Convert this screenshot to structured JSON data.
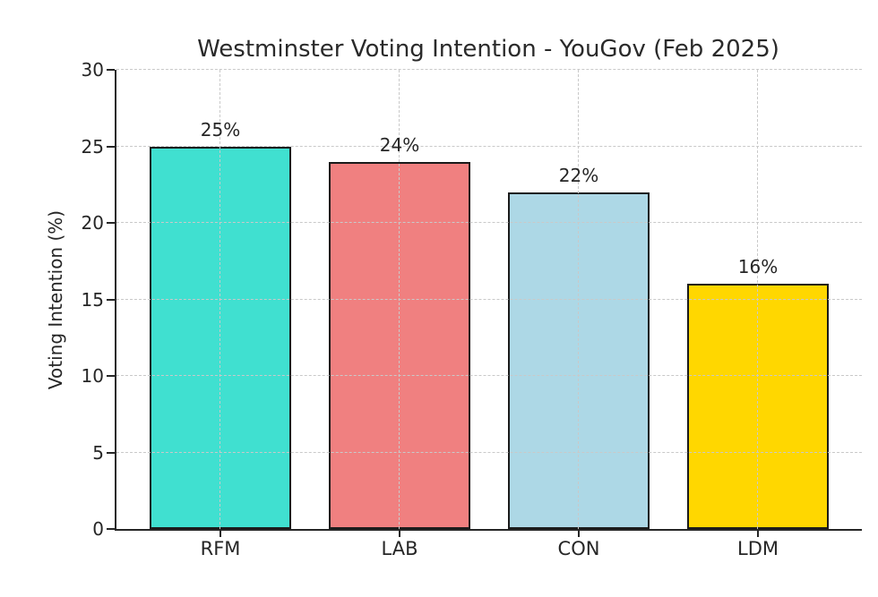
{
  "chart_data": {
    "type": "bar",
    "title": "Westminster Voting Intention - YouGov (Feb 2025)",
    "ylabel": "Voting Intention (%)",
    "xlabel": "",
    "categories": [
      "RFM",
      "LAB",
      "CON",
      "LDM"
    ],
    "values": [
      25,
      24,
      22,
      16
    ],
    "value_labels": [
      "25%",
      "24%",
      "22%",
      "16%"
    ],
    "bar_colors": [
      "#40E0D0",
      "#F08080",
      "#ADD8E6",
      "#FFD700"
    ],
    "bar_edge_color": "#1a1a1a",
    "ylim": [
      0,
      30
    ],
    "yticks": [
      0,
      5,
      10,
      15,
      20,
      25,
      30
    ],
    "grid": "both, dashed, drawn above bars",
    "grid_color": "#c9c9c9",
    "legend": "none",
    "background": "#ffffff"
  }
}
